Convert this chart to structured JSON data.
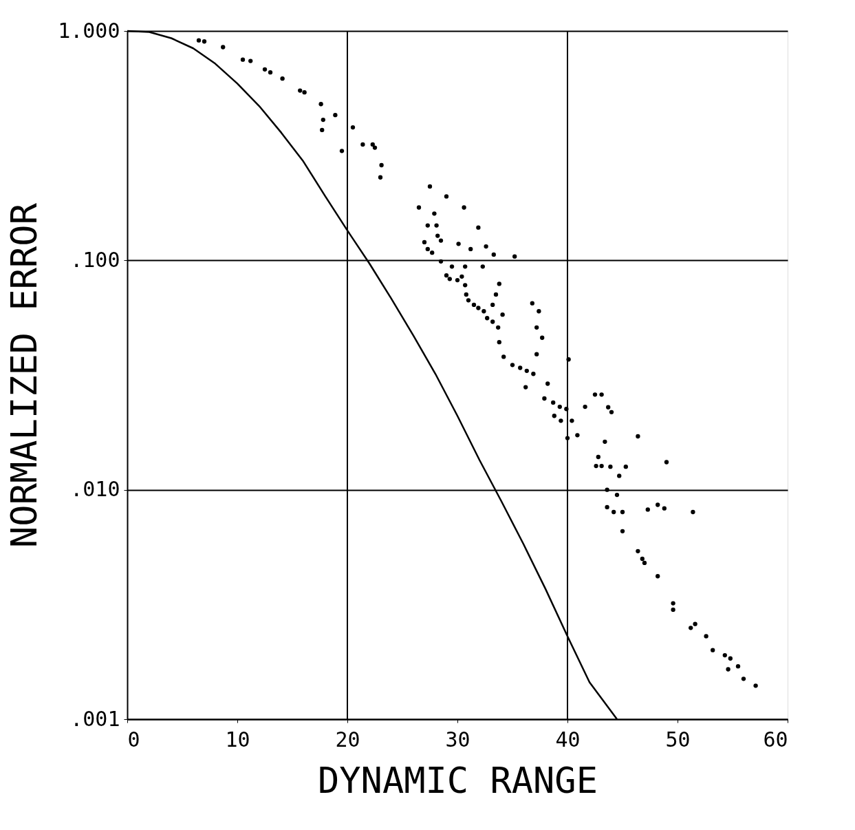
{
  "chart_data": {
    "type": "scatter",
    "xlabel": "DYNAMIC RANGE",
    "ylabel": "NORMALIZED ERROR",
    "xlim": [
      0,
      60
    ],
    "xticks": [
      0,
      10,
      20,
      30,
      40,
      50,
      60
    ],
    "ylim": [
      0.001,
      1
    ],
    "yticks": [
      {
        "value": 0.001,
        "label": ".001"
      },
      {
        "value": 0.01,
        "label": ".010"
      },
      {
        "value": 0.1,
        "label": ".100"
      },
      {
        "value": 1,
        "label": "1.000"
      }
    ],
    "log": "y",
    "grid": "y",
    "line_style": "solid",
    "ref_lines": [
      {
        "axis": "x",
        "value": 20,
        "color": "#000000"
      },
      {
        "axis": "x",
        "value": 40,
        "color": "#000000"
      }
    ],
    "series": [
      {
        "type": "line",
        "color": "#000000",
        "marker": "none",
        "x": [
          0,
          2,
          4,
          6,
          8,
          10,
          12,
          14,
          16,
          18,
          20,
          22,
          24,
          26,
          28,
          30,
          32,
          34,
          36,
          38,
          40,
          42,
          44.5
        ],
        "values": [
          1.0,
          0.99,
          0.93,
          0.84,
          0.72,
          0.59,
          0.47,
          0.36,
          0.27,
          0.19,
          0.135,
          0.097,
          0.068,
          0.047,
          0.032,
          0.021,
          0.0135,
          0.0089,
          0.0058,
          0.0037,
          0.0023,
          0.00145,
          0.001
        ]
      },
      {
        "color": "#000000",
        "marker": "circle",
        "x": [
          6.5,
          7.0,
          8.7,
          10.5,
          11.2,
          12.5,
          13.0,
          14.1,
          15.7,
          16.1,
          17.6,
          17.8,
          17.7,
          18.9,
          19.5,
          20.5,
          21.4,
          22.3,
          22.5,
          23.1,
          23.0,
          27.5,
          29.0,
          26.5,
          27.9,
          30.6,
          28.1,
          27.3,
          31.9,
          28.2,
          28.5,
          27.0,
          27.3,
          30.1,
          32.6,
          31.2,
          27.7,
          33.3,
          35.2,
          28.5,
          29.5,
          30.7,
          32.3,
          29.0,
          29.3,
          30.0,
          30.4,
          30.7,
          30.8,
          31.0,
          33.8,
          33.5,
          31.5,
          31.9,
          32.4,
          32.7,
          33.2,
          33.7,
          34.1,
          33.2,
          33.8,
          34.2,
          35.0,
          35.7,
          36.3,
          36.2,
          36.9,
          36.8,
          37.4,
          37.2,
          37.7,
          37.2,
          38.2,
          37.9,
          38.7,
          39.3,
          39.9,
          38.8,
          39.4,
          40.1,
          40.4,
          40.0,
          40.9,
          41.6,
          42.5,
          43.1,
          43.7,
          44.0,
          43.4,
          42.8,
          42.6,
          43.1,
          43.9,
          45.3,
          44.7,
          46.4,
          49.0,
          43.6,
          44.5,
          43.6,
          44.2,
          45.0,
          47.3,
          48.2,
          48.8,
          51.4,
          45.0,
          46.4,
          46.8,
          47.0,
          48.2,
          49.6,
          49.6,
          51.2,
          51.6,
          52.6,
          53.2,
          54.3,
          54.8,
          54.6,
          55.5,
          56.0,
          57.1
        ],
        "values": [
          0.91,
          0.9,
          0.85,
          0.75,
          0.74,
          0.68,
          0.66,
          0.62,
          0.55,
          0.54,
          0.48,
          0.41,
          0.37,
          0.43,
          0.3,
          0.38,
          0.32,
          0.32,
          0.31,
          0.26,
          0.23,
          0.21,
          0.19,
          0.17,
          0.16,
          0.17,
          0.142,
          0.142,
          0.139,
          0.128,
          0.122,
          0.12,
          0.112,
          0.118,
          0.115,
          0.112,
          0.108,
          0.106,
          0.104,
          0.099,
          0.094,
          0.094,
          0.094,
          0.086,
          0.083,
          0.082,
          0.085,
          0.078,
          0.071,
          0.067,
          0.079,
          0.071,
          0.064,
          0.062,
          0.06,
          0.056,
          0.054,
          0.051,
          0.058,
          0.064,
          0.044,
          0.038,
          0.035,
          0.034,
          0.033,
          0.028,
          0.032,
          0.065,
          0.06,
          0.051,
          0.046,
          0.039,
          0.029,
          0.025,
          0.024,
          0.023,
          0.0225,
          0.021,
          0.02,
          0.037,
          0.02,
          0.0168,
          0.0173,
          0.023,
          0.026,
          0.026,
          0.0229,
          0.0218,
          0.0162,
          0.0139,
          0.0127,
          0.0127,
          0.0126,
          0.0126,
          0.0115,
          0.0171,
          0.0132,
          0.01,
          0.0095,
          0.0084,
          0.008,
          0.008,
          0.0082,
          0.0086,
          0.0083,
          0.008,
          0.0066,
          0.0054,
          0.005,
          0.0048,
          0.0042,
          0.0032,
          0.003,
          0.0025,
          0.0026,
          0.0023,
          0.002,
          0.0019,
          0.00184,
          0.00165,
          0.0017,
          0.0015,
          0.0014
        ]
      }
    ]
  }
}
